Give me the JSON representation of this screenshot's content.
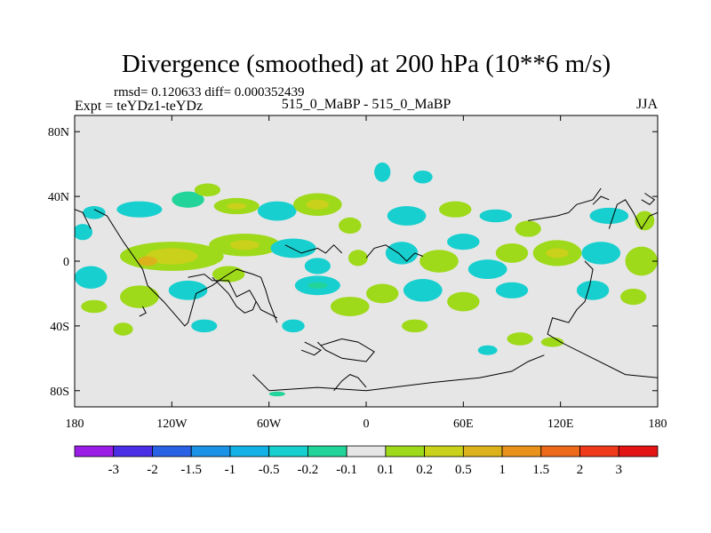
{
  "chart_data": {
    "type": "heatmap",
    "title": "Divergence (smoothed) at 200 hPa (10**6 m/s)",
    "stats_line": "rmsd= 0.120633 diff= 0.000352439",
    "left_label": "Expt = teYDz1-teYDz",
    "center_label": "515_0_MaBP - 515_0_MaBP",
    "right_label": "JJA",
    "x_ticks": [
      {
        "lon": -180,
        "label": "180"
      },
      {
        "lon": -120,
        "label": "120W"
      },
      {
        "lon": -60,
        "label": "60W"
      },
      {
        "lon": 0,
        "label": "0"
      },
      {
        "lon": 60,
        "label": "60E"
      },
      {
        "lon": 120,
        "label": "120E"
      },
      {
        "lon": 180,
        "label": "180"
      }
    ],
    "y_ticks": [
      {
        "lat": 80,
        "label": "80N"
      },
      {
        "lat": 40,
        "label": "40N"
      },
      {
        "lat": 0,
        "label": "0"
      },
      {
        "lat": -40,
        "label": "40S"
      },
      {
        "lat": -80,
        "label": "80S"
      }
    ],
    "xlim": [
      -180,
      180
    ],
    "ylim": [
      -90,
      90
    ],
    "levels": [
      "-3",
      "-2",
      "-1.5",
      "-1",
      "-0.5",
      "-0.2",
      "-0.1",
      "0.1",
      "0.2",
      "0.5",
      "1",
      "1.5",
      "2",
      "3"
    ],
    "colors": [
      "#9a1ee6",
      "#4b2fe6",
      "#2a62e6",
      "#1a92e6",
      "#13b2e6",
      "#18cfcf",
      "#22d49a",
      "#e6e6e6",
      "#9ed91a",
      "#c9d11a",
      "#dcb21a",
      "#e8921a",
      "#ec6a1a",
      "#ee3a1a",
      "#e21414"
    ],
    "field": [
      {
        "lon": -168,
        "lat": 30,
        "rx": 7,
        "ry": 4,
        "level": 5
      },
      {
        "lon": -140,
        "lat": 32,
        "rx": 14,
        "ry": 5,
        "level": 5
      },
      {
        "lon": -110,
        "lat": 38,
        "rx": 10,
        "ry": 5,
        "level": 6
      },
      {
        "lon": -98,
        "lat": 44,
        "rx": 8,
        "ry": 4,
        "level": 8
      },
      {
        "lon": -80,
        "lat": 34,
        "rx": 14,
        "ry": 5,
        "level": 8
      },
      {
        "lon": -80,
        "lat": 34,
        "rx": 6,
        "ry": 2,
        "level": 9
      },
      {
        "lon": -55,
        "lat": 31,
        "rx": 12,
        "ry": 6,
        "level": 5
      },
      {
        "lon": -30,
        "lat": 35,
        "rx": 15,
        "ry": 7,
        "level": 8
      },
      {
        "lon": -30,
        "lat": 35,
        "rx": 7,
        "ry": 3,
        "level": 9
      },
      {
        "lon": -10,
        "lat": 22,
        "rx": 7,
        "ry": 5,
        "level": 8
      },
      {
        "lon": 10,
        "lat": 55,
        "rx": 5,
        "ry": 6,
        "level": 5
      },
      {
        "lon": 35,
        "lat": 52,
        "rx": 6,
        "ry": 4,
        "level": 5
      },
      {
        "lon": 25,
        "lat": 28,
        "rx": 12,
        "ry": 6,
        "level": 5
      },
      {
        "lon": 55,
        "lat": 32,
        "rx": 10,
        "ry": 5,
        "level": 8
      },
      {
        "lon": 80,
        "lat": 28,
        "rx": 10,
        "ry": 4,
        "level": 5
      },
      {
        "lon": 100,
        "lat": 20,
        "rx": 8,
        "ry": 5,
        "level": 8
      },
      {
        "lon": 150,
        "lat": 28,
        "rx": 12,
        "ry": 5,
        "level": 5
      },
      {
        "lon": 172,
        "lat": 25,
        "rx": 6,
        "ry": 6,
        "level": 8
      },
      {
        "lon": -175,
        "lat": 18,
        "rx": 6,
        "ry": 5,
        "level": 5
      },
      {
        "lon": -120,
        "lat": 3,
        "rx": 32,
        "ry": 9,
        "level": 8
      },
      {
        "lon": -120,
        "lat": 3,
        "rx": 16,
        "ry": 5,
        "level": 9
      },
      {
        "lon": -135,
        "lat": 0,
        "rx": 6,
        "ry": 3,
        "level": 10
      },
      {
        "lon": -75,
        "lat": 10,
        "rx": 22,
        "ry": 7,
        "level": 8
      },
      {
        "lon": -75,
        "lat": 10,
        "rx": 9,
        "ry": 3,
        "level": 9
      },
      {
        "lon": -45,
        "lat": 8,
        "rx": 14,
        "ry": 6,
        "level": 5
      },
      {
        "lon": -30,
        "lat": -3,
        "rx": 8,
        "ry": 5,
        "level": 5
      },
      {
        "lon": -5,
        "lat": 2,
        "rx": 6,
        "ry": 5,
        "level": 8
      },
      {
        "lon": 22,
        "lat": 5,
        "rx": 10,
        "ry": 7,
        "level": 5
      },
      {
        "lon": 45,
        "lat": 0,
        "rx": 12,
        "ry": 7,
        "level": 8
      },
      {
        "lon": 60,
        "lat": 12,
        "rx": 10,
        "ry": 5,
        "level": 5
      },
      {
        "lon": 75,
        "lat": -5,
        "rx": 12,
        "ry": 6,
        "level": 5
      },
      {
        "lon": 90,
        "lat": 5,
        "rx": 10,
        "ry": 6,
        "level": 8
      },
      {
        "lon": 118,
        "lat": 5,
        "rx": 15,
        "ry": 8,
        "level": 8
      },
      {
        "lon": 118,
        "lat": 5,
        "rx": 7,
        "ry": 3,
        "level": 9
      },
      {
        "lon": 145,
        "lat": 5,
        "rx": 12,
        "ry": 7,
        "level": 5
      },
      {
        "lon": 170,
        "lat": 0,
        "rx": 10,
        "ry": 9,
        "level": 8
      },
      {
        "lon": -170,
        "lat": -10,
        "rx": 10,
        "ry": 7,
        "level": 5
      },
      {
        "lon": -140,
        "lat": -22,
        "rx": 12,
        "ry": 7,
        "level": 8
      },
      {
        "lon": -110,
        "lat": -18,
        "rx": 12,
        "ry": 6,
        "level": 5
      },
      {
        "lon": -85,
        "lat": -8,
        "rx": 10,
        "ry": 5,
        "level": 8
      },
      {
        "lon": -30,
        "lat": -15,
        "rx": 14,
        "ry": 6,
        "level": 5
      },
      {
        "lon": -30,
        "lat": -15,
        "rx": 6,
        "ry": 2,
        "level": 6
      },
      {
        "lon": -10,
        "lat": -28,
        "rx": 12,
        "ry": 6,
        "level": 8
      },
      {
        "lon": 10,
        "lat": -20,
        "rx": 10,
        "ry": 6,
        "level": 8
      },
      {
        "lon": 35,
        "lat": -18,
        "rx": 12,
        "ry": 7,
        "level": 5
      },
      {
        "lon": 60,
        "lat": -25,
        "rx": 10,
        "ry": 6,
        "level": 8
      },
      {
        "lon": 90,
        "lat": -18,
        "rx": 10,
        "ry": 5,
        "level": 5
      },
      {
        "lon": 140,
        "lat": -18,
        "rx": 10,
        "ry": 6,
        "level": 5
      },
      {
        "lon": 165,
        "lat": -22,
        "rx": 8,
        "ry": 5,
        "level": 8
      },
      {
        "lon": -168,
        "lat": -28,
        "rx": 8,
        "ry": 4,
        "level": 8
      },
      {
        "lon": -100,
        "lat": -40,
        "rx": 8,
        "ry": 4,
        "level": 5
      },
      {
        "lon": -150,
        "lat": -42,
        "rx": 6,
        "ry": 4,
        "level": 8
      },
      {
        "lon": -45,
        "lat": -40,
        "rx": 7,
        "ry": 4,
        "level": 5
      },
      {
        "lon": 30,
        "lat": -40,
        "rx": 8,
        "ry": 4,
        "level": 8
      },
      {
        "lon": 95,
        "lat": -48,
        "rx": 8,
        "ry": 4,
        "level": 8
      },
      {
        "lon": 115,
        "lat": -50,
        "rx": 7,
        "ry": 3,
        "level": 8
      },
      {
        "lon": 75,
        "lat": -55,
        "rx": 6,
        "ry": 3,
        "level": 5
      },
      {
        "lon": -55,
        "lat": -82,
        "rx": 5,
        "ry": 1.5,
        "level": 6
      }
    ],
    "coastline": [
      [
        [
          -168,
          32
        ],
        [
          -160,
          28
        ],
        [
          -150,
          12
        ],
        [
          -138,
          -5
        ],
        [
          -135,
          -15
        ],
        [
          -125,
          -25
        ],
        [
          -112,
          -40
        ],
        [
          -110,
          -38
        ],
        [
          -105,
          -20
        ],
        [
          -95,
          -15
        ],
        [
          -88,
          -10
        ],
        [
          -80,
          -5
        ],
        [
          -70,
          -8
        ],
        [
          -65,
          -10
        ],
        [
          -62,
          -18
        ],
        [
          -60,
          -25
        ],
        [
          -58,
          -30
        ],
        [
          -55,
          -38
        ]
      ],
      [
        [
          -110,
          -10
        ],
        [
          -100,
          -8
        ],
        [
          -95,
          -12
        ],
        [
          -85,
          -12
        ],
        [
          -80,
          -22
        ],
        [
          -72,
          -18
        ],
        [
          -65,
          -30
        ],
        [
          -55,
          -35
        ]
      ],
      [
        [
          -30,
          -50
        ],
        [
          -25,
          -55
        ],
        [
          -15,
          -60
        ],
        [
          0,
          -62
        ],
        [
          5,
          -56
        ],
        [
          -5,
          -50
        ],
        [
          -15,
          -48
        ],
        [
          -28,
          -52
        ]
      ],
      [
        [
          -50,
          10
        ],
        [
          -40,
          5
        ],
        [
          -30,
          8
        ],
        [
          -25,
          5
        ],
        [
          -20,
          10
        ],
        [
          -15,
          5
        ]
      ],
      [
        [
          0,
          2
        ],
        [
          5,
          8
        ],
        [
          12,
          10
        ],
        [
          20,
          5
        ],
        [
          25,
          0
        ],
        [
          30,
          5
        ],
        [
          35,
          3
        ]
      ],
      [
        [
          100,
          25
        ],
        [
          118,
          28
        ],
        [
          125,
          30
        ],
        [
          130,
          35
        ],
        [
          140,
          38
        ],
        [
          145,
          45
        ]
      ],
      [
        [
          150,
          20
        ],
        [
          155,
          35
        ],
        [
          160,
          38
        ],
        [
          165,
          30
        ],
        [
          170,
          20
        ],
        [
          175,
          28
        ],
        [
          180,
          30
        ]
      ],
      [
        [
          -180,
          32
        ],
        [
          -175,
          30
        ],
        [
          -172,
          24
        ],
        [
          -170,
          20
        ]
      ],
      [
        [
          135,
          0
        ],
        [
          140,
          -5
        ],
        [
          138,
          -15
        ],
        [
          135,
          -25
        ],
        [
          130,
          -30
        ],
        [
          125,
          -38
        ],
        [
          115,
          -35
        ],
        [
          112,
          -45
        ],
        [
          120,
          -50
        ],
        [
          140,
          -60
        ],
        [
          160,
          -70
        ],
        [
          180,
          -72
        ]
      ],
      [
        [
          -60,
          -80
        ],
        [
          -30,
          -78
        ],
        [
          0,
          -80
        ],
        [
          40,
          -75
        ],
        [
          70,
          -72
        ],
        [
          90,
          -68
        ],
        [
          100,
          -62
        ],
        [
          110,
          -58
        ]
      ],
      [
        [
          -60,
          -80
        ],
        [
          -65,
          -75
        ],
        [
          -70,
          -70
        ]
      ],
      [
        [
          -95,
          -10
        ],
        [
          -85,
          -20
        ],
        [
          -80,
          -28
        ],
        [
          -75,
          -32
        ],
        [
          -70,
          -30
        ],
        [
          -68,
          -25
        ]
      ],
      [
        [
          -40,
          -55
        ],
        [
          -32,
          -58
        ],
        [
          -28,
          -55
        ],
        [
          -38,
          -50
        ]
      ],
      [
        [
          -20,
          -80
        ],
        [
          -15,
          -74
        ],
        [
          -10,
          -70
        ],
        [
          -5,
          -72
        ],
        [
          0,
          -78
        ]
      ],
      [
        [
          140,
          35
        ],
        [
          145,
          40
        ],
        [
          150,
          38
        ]
      ],
      [
        [
          170,
          38
        ],
        [
          175,
          35
        ],
        [
          178,
          38
        ],
        [
          172,
          42
        ]
      ],
      [
        [
          -138,
          -28
        ],
        [
          -136,
          -32
        ],
        [
          -140,
          -34
        ]
      ]
    ]
  }
}
